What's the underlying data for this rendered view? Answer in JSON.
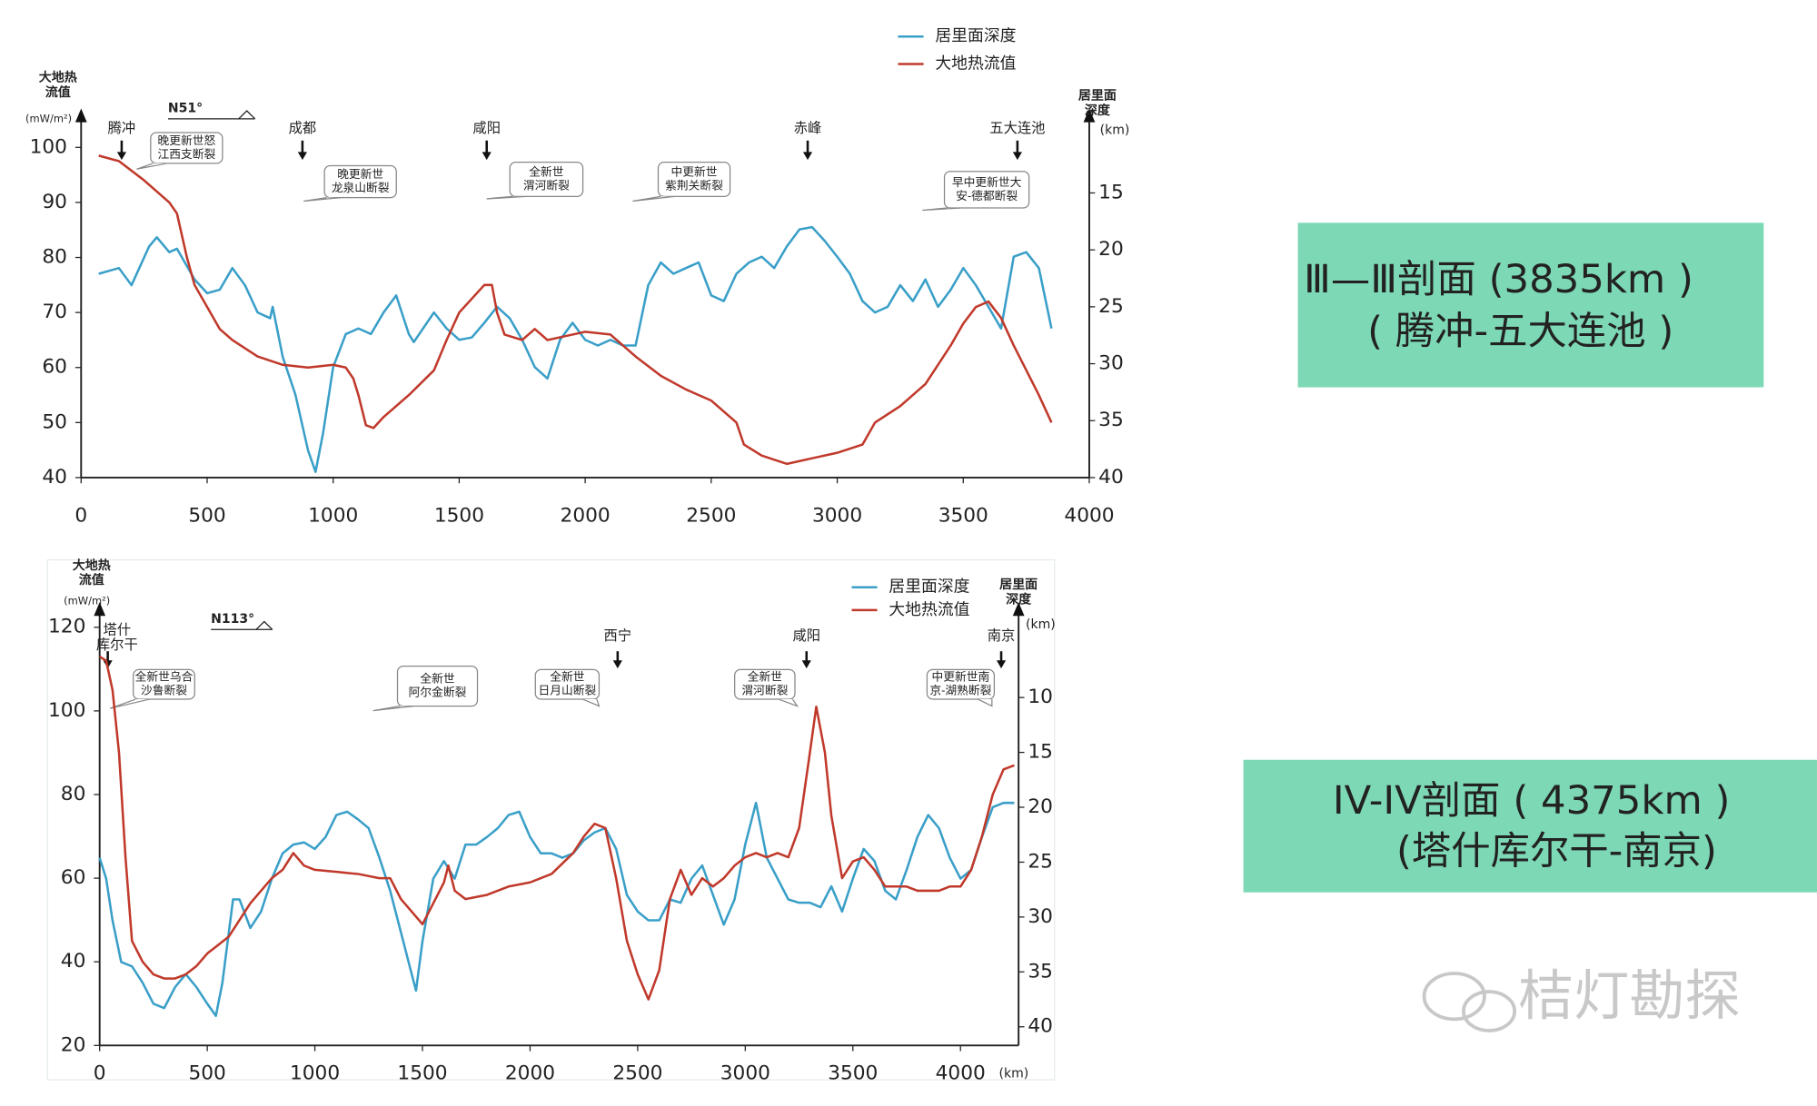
{
  "chart_data": [
    {
      "type": "line",
      "y_label": [
        "大地热",
        "流值"
      ],
      "y_unit": "(mW/m²)",
      "y2_label": [
        "居里面",
        "深度"
      ],
      "y2_unit": "(km)",
      "direction": "N51°",
      "xlim": [
        0,
        4000
      ],
      "xticks": [
        0,
        500,
        1000,
        1500,
        2000,
        2500,
        3000,
        3500,
        4000
      ],
      "ylim": [
        40,
        100
      ],
      "yticks": [
        40,
        50,
        60,
        70,
        80,
        90,
        100
      ],
      "y2lim": [
        40,
        11
      ],
      "y2ticks": [
        15,
        20,
        25,
        30,
        35,
        40
      ],
      "cities": [
        [
          "腾冲"
        ],
        [
          "成都"
        ],
        [
          "咸阳"
        ],
        [
          "赤峰"
        ],
        [
          "五大连池"
        ]
      ],
      "faults": [
        [
          "晚更新世怒",
          "江西支断裂"
        ],
        [
          "晚更新世",
          "龙泉山断裂"
        ],
        [
          "全新世",
          "渭河断裂"
        ],
        [
          "中更新世",
          "紫荆关断裂"
        ],
        [
          "早中更新世大",
          "安-德都断裂"
        ]
      ],
      "series": [
        {
          "name": "居里面深度",
          "color": "#3a9fc8",
          "axis": "y2",
          "x": [
            70,
            150,
            200,
            270,
            300,
            350,
            380,
            450,
            500,
            550,
            600,
            650,
            700,
            750,
            760,
            800,
            850,
            900,
            930,
            960,
            1000,
            1050,
            1100,
            1150,
            1200,
            1250,
            1300,
            1320,
            1400,
            1450,
            1500,
            1550,
            1600,
            1650,
            1700,
            1750,
            1800,
            1850,
            1900,
            1950,
            2000,
            2050,
            2100,
            2150,
            2200,
            2250,
            2300,
            2350,
            2400,
            2450,
            2500,
            2550,
            2600,
            2650,
            2700,
            2750,
            2800,
            2850,
            2900,
            2950,
            3000,
            3050,
            3100,
            3150,
            3200,
            3250,
            3300,
            3350,
            3400,
            3450,
            3500,
            3550,
            3600,
            3650,
            3700,
            3750,
            3800,
            3850
          ],
          "values": [
            22.1,
            21.6,
            23.1,
            19.7,
            18.9,
            20.2,
            19.9,
            22.6,
            23.8,
            23.5,
            21.6,
            23.1,
            25.5,
            26,
            25,
            29.4,
            32.7,
            37.6,
            39.5,
            36.1,
            30.3,
            27.4,
            26.9,
            27.4,
            25.5,
            24,
            27.4,
            28.1,
            25.5,
            26.9,
            27.9,
            27.7,
            26.4,
            25,
            26,
            27.9,
            30.3,
            31.3,
            27.9,
            26.4,
            27.9,
            28.4,
            27.9,
            28.4,
            28.4,
            23.1,
            21.1,
            22.1,
            21.6,
            21.1,
            24,
            24.5,
            22.1,
            21.1,
            20.6,
            21.6,
            19.7,
            18.2,
            18,
            19.2,
            20.6,
            22.1,
            24.5,
            25.5,
            25,
            23.1,
            24.5,
            22.6,
            25,
            23.5,
            21.6,
            23.1,
            25,
            26.9,
            20.6,
            20.2,
            21.6,
            26.9
          ]
        },
        {
          "name": "大地热流值",
          "color": "#c0392b",
          "x": [
            70,
            150,
            250,
            350,
            380,
            420,
            450,
            500,
            550,
            600,
            700,
            800,
            900,
            1000,
            1050,
            1080,
            1100,
            1130,
            1160,
            1200,
            1300,
            1400,
            1450,
            1500,
            1550,
            1600,
            1630,
            1650,
            1680,
            1750,
            1800,
            1850,
            1900,
            1950,
            2000,
            2100,
            2200,
            2300,
            2400,
            2500,
            2550,
            2600,
            2630,
            2700,
            2800,
            2900,
            3000,
            3100,
            3150,
            3250,
            3350,
            3450,
            3500,
            3550,
            3600,
            3650,
            3700,
            3800,
            3850
          ],
          "values": [
            98.5,
            97.5,
            94,
            90,
            88,
            80,
            75,
            71,
            67,
            65,
            62,
            60.5,
            60,
            60.5,
            60,
            58,
            55,
            49.5,
            49,
            51,
            55,
            59.5,
            65,
            70,
            72.5,
            75,
            75,
            70,
            66,
            65,
            67,
            65,
            65.5,
            66,
            66.5,
            66,
            62,
            58.5,
            56,
            54,
            52,
            50,
            46,
            44,
            42.5,
            43.5,
            44.5,
            46,
            50,
            53,
            57,
            64,
            68,
            71,
            72,
            69,
            64,
            55,
            50
          ]
        }
      ]
    },
    {
      "type": "line",
      "y_label": [
        "大地热",
        "流值"
      ],
      "y_unit": "(mW/m²)",
      "y2_label": [
        "居里面",
        "深度"
      ],
      "y2_unit": "(km)",
      "x_unit": "(km)",
      "direction": "N113°",
      "xlim": [
        0,
        4270
      ],
      "xticks": [
        0,
        500,
        1000,
        1500,
        2000,
        2500,
        3000,
        3500,
        4000
      ],
      "ylim": [
        20,
        120
      ],
      "yticks": [
        20,
        40,
        60,
        80,
        100,
        120
      ],
      "y2lim": [
        41.7,
        3.6
      ],
      "y2ticks": [
        10,
        15,
        20,
        25,
        30,
        35,
        40
      ],
      "cities": [
        [
          "塔什",
          "库尔干"
        ],
        [
          "西宁"
        ],
        [
          "咸阳"
        ],
        [
          "南京"
        ]
      ],
      "faults": [
        [
          "全新世乌合",
          "沙鲁断裂"
        ],
        [
          "全新世",
          "阿尔金断裂"
        ],
        [
          "全新世",
          "日月山断裂"
        ],
        [
          "全新世",
          "渭河断裂"
        ],
        [
          "中更新世南",
          "京-湖熟断裂"
        ]
      ],
      "series": [
        {
          "name": "居里面深度",
          "color": "#3a9fc8",
          "axis": "y2",
          "x": [
            0,
            30,
            60,
            100,
            150,
            200,
            250,
            300,
            350,
            400,
            450,
            500,
            540,
            570,
            620,
            650,
            700,
            750,
            800,
            850,
            900,
            950,
            1000,
            1050,
            1100,
            1150,
            1200,
            1250,
            1300,
            1350,
            1400,
            1450,
            1470,
            1500,
            1550,
            1600,
            1650,
            1700,
            1750,
            1800,
            1850,
            1900,
            1950,
            2000,
            2050,
            2100,
            2150,
            2200,
            2250,
            2300,
            2350,
            2400,
            2450,
            2500,
            2550,
            2600,
            2650,
            2700,
            2750,
            2800,
            2850,
            2900,
            2950,
            3000,
            3050,
            3100,
            3150,
            3200,
            3250,
            3300,
            3350,
            3400,
            3450,
            3500,
            3550,
            3600,
            3650,
            3700,
            3750,
            3800,
            3850,
            3900,
            3950,
            4000,
            4050,
            4100,
            4150,
            4200,
            4250
          ],
          "values": [
            24.6,
            26.5,
            30.3,
            34.1,
            34.5,
            36,
            37.9,
            38.3,
            36.4,
            35.2,
            36.4,
            37.9,
            39,
            36,
            28.4,
            28.4,
            31,
            29.5,
            26.5,
            24.2,
            23.4,
            23.2,
            23.8,
            22.7,
            20.7,
            20.4,
            21.1,
            21.9,
            24.6,
            27.6,
            31.4,
            35.2,
            36.7,
            32.2,
            26.5,
            24.9,
            26.5,
            23.4,
            23.4,
            22.7,
            21.9,
            20.7,
            20.4,
            22.7,
            24.2,
            24.2,
            24.6,
            24.2,
            23,
            22.3,
            21.9,
            23.8,
            28,
            29.5,
            30.3,
            30.3,
            28.4,
            28.7,
            26.5,
            25.3,
            28,
            30.7,
            28.4,
            23.4,
            19.6,
            24.6,
            26.5,
            28.4,
            28.7,
            28.7,
            29.1,
            27.2,
            29.5,
            26.5,
            23.8,
            24.9,
            27.6,
            28.4,
            25.7,
            22.7,
            20.7,
            21.9,
            24.6,
            26.5,
            25.7,
            22.7,
            20,
            19.6,
            19.6
          ]
        },
        {
          "name": "大地热流值",
          "color": "#c0392b",
          "x": [
            0,
            30,
            60,
            90,
            120,
            150,
            200,
            250,
            300,
            350,
            400,
            450,
            500,
            550,
            600,
            650,
            700,
            750,
            800,
            850,
            900,
            950,
            1000,
            1100,
            1200,
            1300,
            1350,
            1400,
            1450,
            1500,
            1550,
            1600,
            1620,
            1650,
            1700,
            1800,
            1900,
            2000,
            2100,
            2200,
            2250,
            2300,
            2350,
            2400,
            2450,
            2500,
            2550,
            2600,
            2650,
            2700,
            2750,
            2800,
            2850,
            2900,
            2950,
            3000,
            3050,
            3100,
            3150,
            3200,
            3250,
            3300,
            3330,
            3370,
            3400,
            3450,
            3500,
            3550,
            3600,
            3650,
            3700,
            3750,
            3800,
            3850,
            3900,
            3950,
            4000,
            4050,
            4100,
            4150,
            4200,
            4250
          ],
          "values": [
            113,
            112,
            105,
            90,
            65,
            45,
            40,
            37,
            36,
            36,
            37,
            39,
            42,
            44,
            46,
            50,
            54,
            57,
            60,
            62,
            66,
            63,
            62,
            61.5,
            61,
            60,
            60,
            55,
            52,
            49,
            54,
            59,
            63,
            57,
            55,
            56,
            58,
            59,
            61,
            66,
            70,
            73,
            72,
            60,
            45,
            37,
            31,
            38,
            55,
            62,
            56,
            60,
            58,
            60,
            63,
            65,
            66,
            65,
            66,
            65,
            72,
            90,
            101,
            90,
            75,
            60,
            64,
            65,
            62,
            58,
            58,
            58,
            57,
            57,
            57,
            58,
            58,
            62,
            70,
            80,
            86,
            87
          ]
        }
      ]
    }
  ],
  "panels": [
    [
      "Ⅲ—Ⅲ剖面 (3835km )",
      "( 腾冲-五大连池 )"
    ],
    [
      "IV-IV剖面 ( 4375km )",
      "(塔什库尔干-南京)"
    ]
  ],
  "watermark": "桔灯勘探"
}
